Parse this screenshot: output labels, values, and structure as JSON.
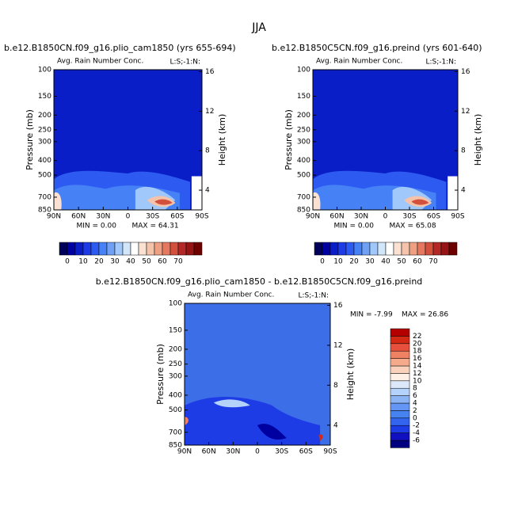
{
  "title": "JJA",
  "chart_data": [
    {
      "type": "contour",
      "title": "b.e12.B1850CN.f09_g16.plio_cam1850 (yrs 655-694)",
      "subtitle": "Avg. Rain Number Conc.",
      "corner_label": "L:S;-1:N:",
      "ylabel": "Pressure (mb)",
      "y2label": "Height (km)",
      "log_y": true,
      "xlim": [
        90,
        -90
      ],
      "xticks": [
        {
          "value": 90,
          "label": "90N"
        },
        {
          "value": 60,
          "label": "60N"
        },
        {
          "value": 30,
          "label": "30N"
        },
        0,
        {
          "value": -30,
          "label": "30S"
        },
        {
          "value": -60,
          "label": "60S"
        },
        {
          "value": -90,
          "label": "90S"
        }
      ],
      "ylim": [
        100,
        850
      ],
      "yticks": [
        100,
        150,
        200,
        250,
        300,
        400,
        500,
        700,
        850
      ],
      "y2lim": [
        2,
        16.2
      ],
      "y2ticks": [
        4,
        8,
        12,
        16
      ],
      "stats": [
        "MIN =   0.00",
        "MAX =  64.31"
      ],
      "colorbar": {
        "orientation": "horizontal",
        "ticks": [
          0,
          10,
          20,
          30,
          40,
          50,
          60,
          70
        ],
        "colors": [
          "#00005a",
          "#0000a0",
          "#0a1ec8",
          "#1e3ce6",
          "#2d5af0",
          "#4682f5",
          "#6ea0f5",
          "#a0c8fa",
          "#d2e6fa",
          "#ffffff",
          "#fae1d2",
          "#f5c3aa",
          "#f0a082",
          "#e67860",
          "#d2503c",
          "#b42828",
          "#961414",
          "#6e0000"
        ]
      }
    },
    {
      "type": "contour",
      "title": "b.e12.B1850C5CN.f09_g16.preind (yrs 601-640)",
      "subtitle": "Avg. Rain Number Conc.",
      "corner_label": "L:S;-1:N:",
      "ylabel": "Pressure (mb)",
      "y2label": "Height (km)",
      "log_y": true,
      "xlim": [
        90,
        -90
      ],
      "xticks": [
        {
          "value": 90,
          "label": "90N"
        },
        {
          "value": 60,
          "label": "60N"
        },
        {
          "value": 30,
          "label": "30N"
        },
        0,
        {
          "value": -30,
          "label": "30S"
        },
        {
          "value": -60,
          "label": "60S"
        },
        {
          "value": -90,
          "label": "90S"
        }
      ],
      "ylim": [
        100,
        850
      ],
      "yticks": [
        100,
        150,
        200,
        250,
        300,
        400,
        500,
        700,
        850
      ],
      "y2lim": [
        2,
        16.2
      ],
      "y2ticks": [
        4,
        8,
        12,
        16
      ],
      "stats": [
        "MIN =   0.00",
        "MAX =  65.08"
      ],
      "colorbar": {
        "orientation": "horizontal",
        "ticks": [
          0,
          10,
          20,
          30,
          40,
          50,
          60,
          70
        ],
        "colors": [
          "#00005a",
          "#0000a0",
          "#0a1ec8",
          "#1e3ce6",
          "#2d5af0",
          "#4682f5",
          "#6ea0f5",
          "#a0c8fa",
          "#d2e6fa",
          "#ffffff",
          "#fae1d2",
          "#f5c3aa",
          "#f0a082",
          "#e67860",
          "#d2503c",
          "#b42828",
          "#961414",
          "#6e0000"
        ]
      }
    },
    {
      "type": "contour",
      "title": "b.e12.B1850CN.f09_g16.plio_cam1850 - b.e12.B1850C5CN.f09_g16.preind",
      "subtitle": "Avg. Rain Number Conc.",
      "corner_label": "L:S;-1:N:",
      "ylabel": "Pressure (mb)",
      "y2label": "Height (km)",
      "log_y": true,
      "xlim": [
        90,
        -90
      ],
      "xticks": [
        {
          "value": 90,
          "label": "90N"
        },
        {
          "value": 60,
          "label": "60N"
        },
        {
          "value": 30,
          "label": "30N"
        },
        0,
        {
          "value": -30,
          "label": "30S"
        },
        {
          "value": -60,
          "label": "60S"
        },
        {
          "value": -90,
          "label": "90S"
        }
      ],
      "ylim": [
        100,
        850
      ],
      "yticks": [
        100,
        150,
        200,
        250,
        300,
        400,
        500,
        700,
        850
      ],
      "y2lim": [
        2,
        16.2
      ],
      "y2ticks": [
        4,
        8,
        12,
        16
      ],
      "stats": [
        "MIN = -7.99",
        "MAX =  26.86"
      ],
      "colorbar": {
        "orientation": "vertical",
        "ticks": [
          -6,
          -4,
          -2,
          0,
          2,
          4,
          6,
          8,
          10,
          12,
          14,
          16,
          18,
          20,
          22
        ],
        "colors": [
          "#000080",
          "#1010c0",
          "#1e3ce6",
          "#3264f0",
          "#4682f0",
          "#6496f5",
          "#8cb4f5",
          "#b4d2fa",
          "#dce8fa",
          "#fff0e6",
          "#fad2bc",
          "#f5aa8c",
          "#f08264",
          "#e6503c",
          "#d22814",
          "#b40000"
        ]
      }
    }
  ]
}
